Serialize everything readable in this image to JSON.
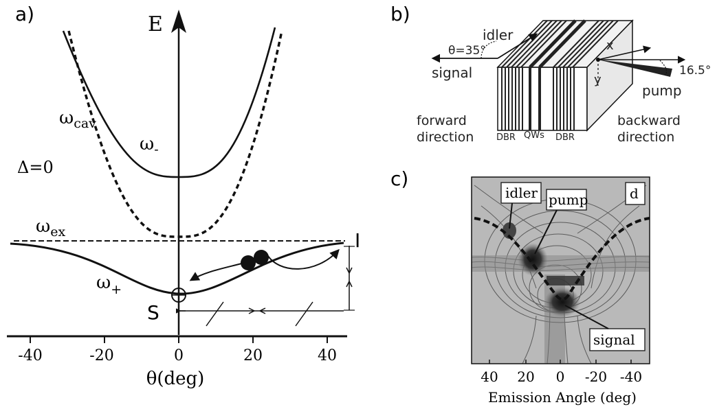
{
  "panel_a": {
    "tag": "a)",
    "energy_axis": "E",
    "omega_cav_main": "ω",
    "omega_cav_sub": "cav",
    "omega_minus_main": "ω",
    "omega_minus_sub": "-",
    "omega_ex_main": "ω",
    "omega_ex_sub": "ex",
    "omega_plus_main": "ω",
    "omega_plus_sub": "+",
    "detuning": "Δ=0",
    "signal_point": "S",
    "idler_point": "I",
    "x_ticks": [
      "-40",
      "-20",
      "0",
      "20",
      "40"
    ],
    "x_axis_label": "θ(deg)"
  },
  "panel_b": {
    "tag": "b)",
    "idler": "idler",
    "angle_label": "θ=35°",
    "signal": "signal",
    "x_axis": "x",
    "y_axis": "y",
    "pump_angle": "16.5°",
    "pump": "pump",
    "forward_1": "forward",
    "forward_2": "direction",
    "backward_1": "backward",
    "backward_2": "direction",
    "dbr_left": "DBR",
    "qws": "QWs",
    "dbr_right": "DBR"
  },
  "panel_c": {
    "tag": "c)",
    "corner_label": "d",
    "idler": "idler",
    "pump": "pump",
    "signal": "signal",
    "x_ticks": [
      "40",
      "20",
      "0",
      "-20",
      "-40"
    ],
    "x_axis_label": "Emission Angle (deg)"
  }
}
